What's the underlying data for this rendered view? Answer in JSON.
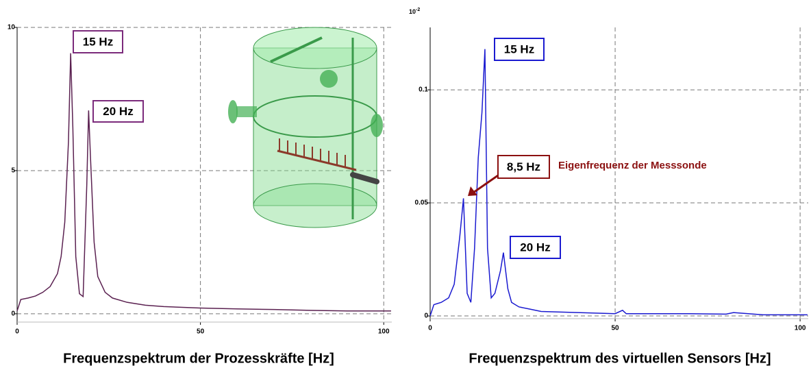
{
  "chart_data": [
    {
      "type": "line",
      "title": "Frequenzspektrum der Prozesskräfte [Hz]",
      "x": [
        0,
        1,
        3,
        5,
        7,
        9,
        11,
        12,
        13,
        14,
        14.6,
        15.2,
        16,
        17,
        18,
        19,
        19.5,
        20,
        21,
        22,
        24,
        26,
        30,
        35,
        40,
        50,
        60,
        70,
        80,
        90,
        100,
        102
      ],
      "values": [
        0.1,
        0.5,
        0.55,
        0.62,
        0.75,
        0.95,
        1.4,
        2.0,
        3.2,
        6.0,
        9.1,
        6.5,
        2.0,
        0.7,
        0.6,
        4.5,
        7.1,
        5.5,
        2.5,
        1.3,
        0.75,
        0.55,
        0.4,
        0.3,
        0.25,
        0.2,
        0.17,
        0.15,
        0.12,
        0.1,
        0.1,
        0.1
      ],
      "color": "#5a2050",
      "xlim": [
        0,
        102.2
      ],
      "xticks": [
        0,
        50,
        100
      ],
      "ylim": [
        -0.29,
        10
      ],
      "yticks": [
        0,
        5,
        10
      ],
      "grid": true,
      "annotations": [
        "15 Hz",
        "20 Hz"
      ],
      "annotation_color": "#7b2a7b"
    },
    {
      "type": "line",
      "title": "Frequenzspektrum des virtuellen Sensors [Hz]",
      "x": [
        0,
        1,
        3,
        5,
        6.5,
        8,
        9,
        10,
        11,
        12,
        13,
        14,
        14.8,
        15.5,
        16.5,
        17.5,
        19,
        19.8,
        21,
        22,
        24,
        27,
        30,
        40,
        50,
        52,
        53,
        60,
        70,
        80,
        82,
        90,
        100,
        102
      ],
      "values": [
        0,
        0.005,
        0.006,
        0.008,
        0.014,
        0.035,
        0.052,
        0.01,
        0.006,
        0.03,
        0.07,
        0.09,
        0.118,
        0.03,
        0.008,
        0.01,
        0.02,
        0.028,
        0.012,
        0.006,
        0.004,
        0.003,
        0.002,
        0.0015,
        0.001,
        0.0025,
        0.001,
        0.001,
        0.001,
        0.0008,
        0.0015,
        0.0005,
        0.0005,
        0.0005
      ],
      "color": "#1a1ad0",
      "xlim": [
        0,
        102.2
      ],
      "xticks": [
        0,
        50,
        100
      ],
      "ylim": [
        -0.0012,
        0.1276
      ],
      "yticks": [
        0,
        0.05,
        0.1
      ],
      "grid": true,
      "y_exponent_base": "10",
      "y_exponent": "-2",
      "annotations": [
        "15 Hz",
        "8,5 Hz",
        "20 Hz"
      ],
      "annotation_color": "#1a1ad0",
      "highlight_color": "#8b1010",
      "note": "Eigenfrequenz der Messsonde"
    }
  ]
}
